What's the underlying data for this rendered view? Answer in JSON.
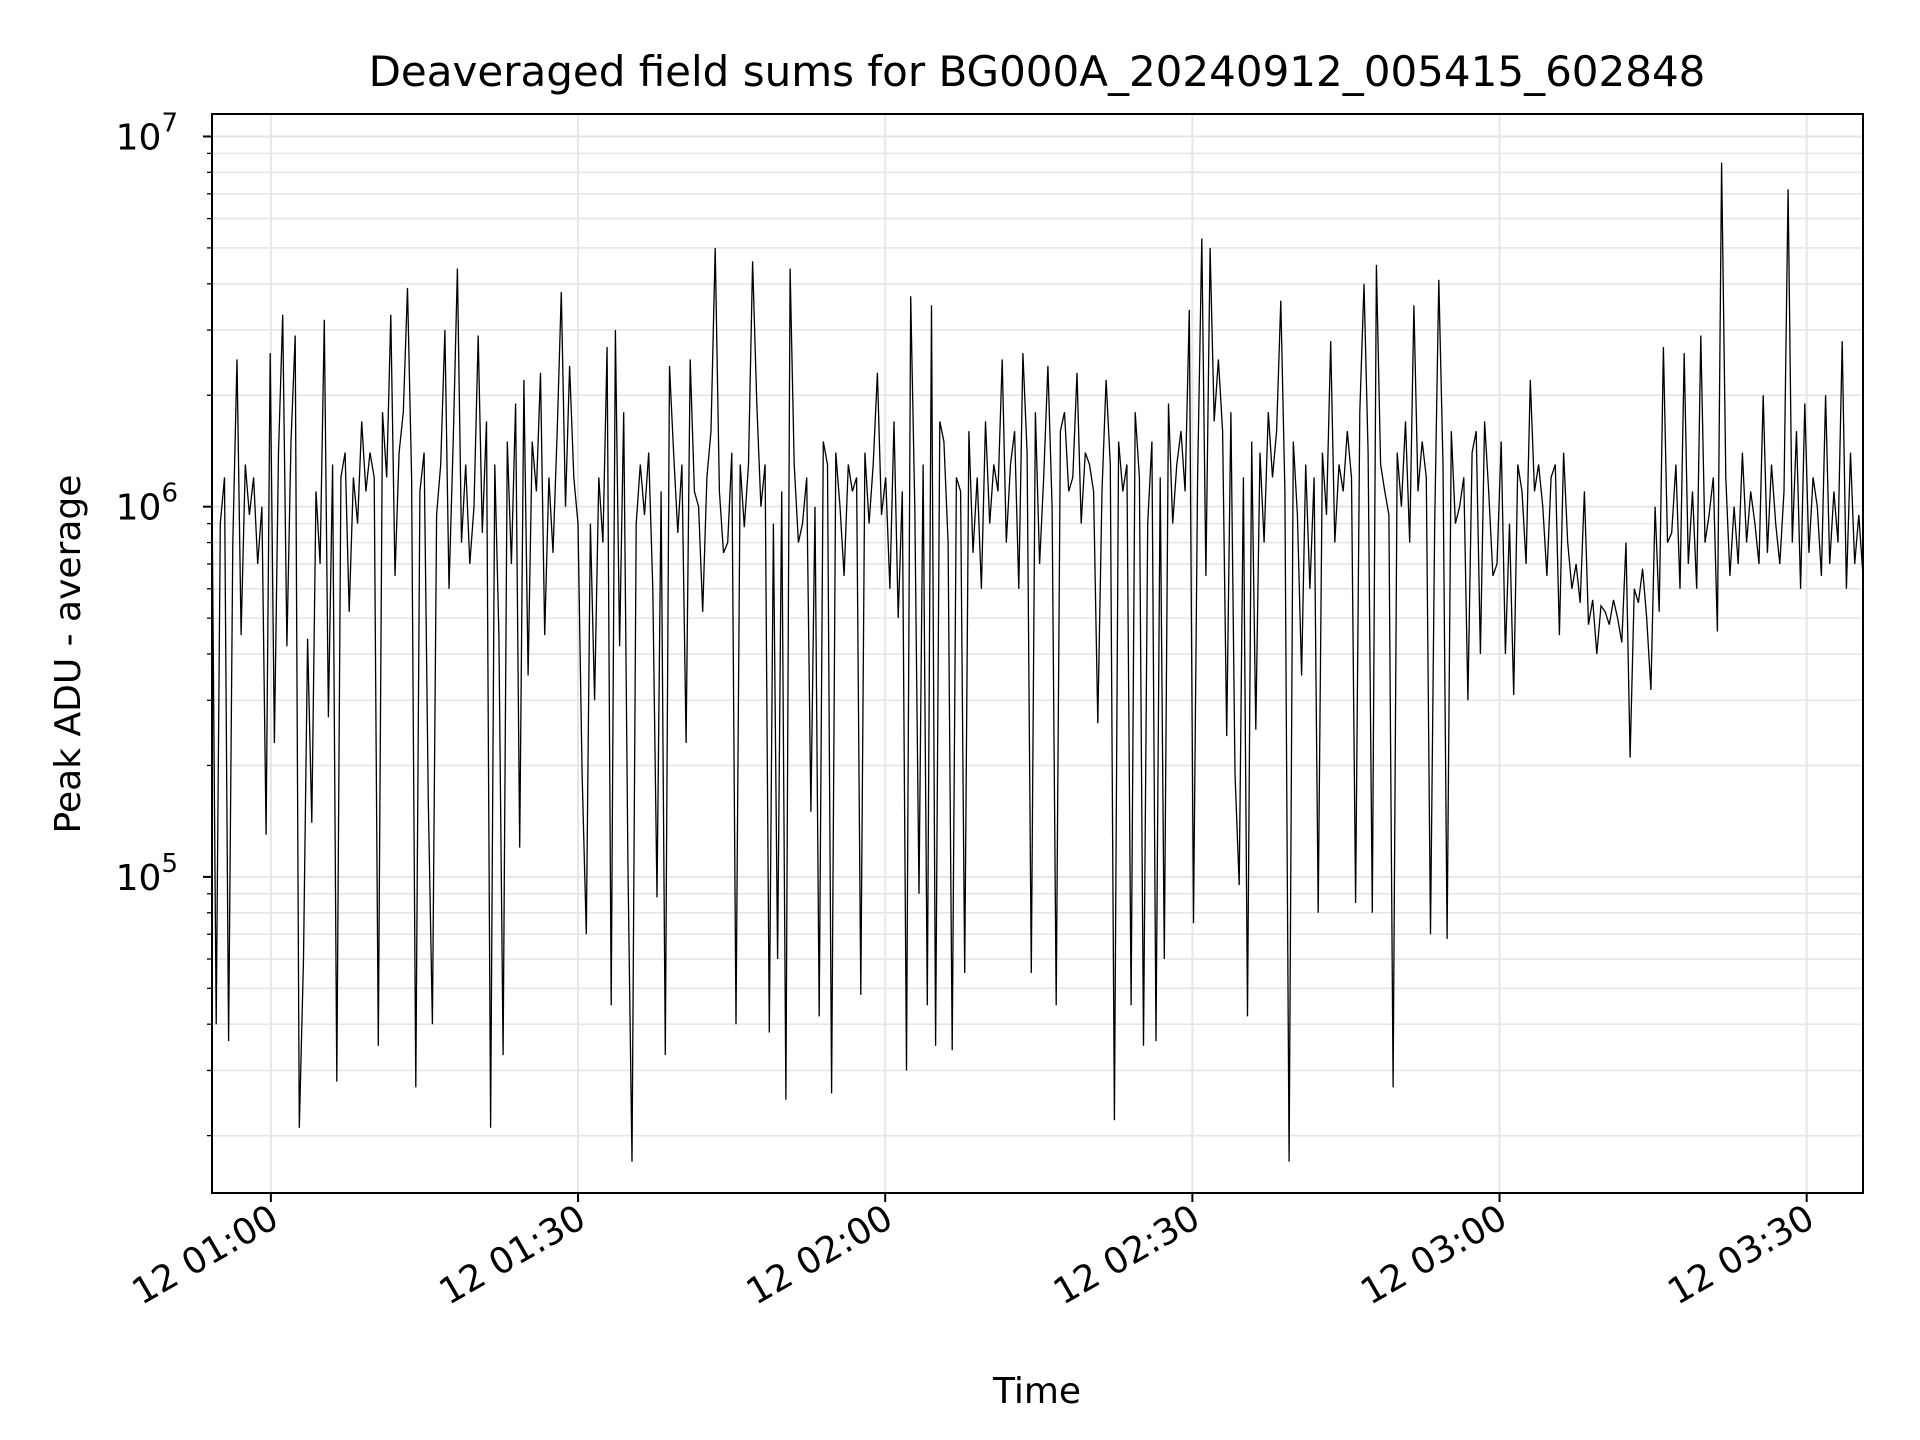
{
  "chart_data": {
    "type": "line",
    "title": "Deaveraged field sums for BG000A_20240912_005415_602848",
    "xlabel": "Time",
    "ylabel": "Peak ADU - average",
    "x_tick_labels": [
      "12 01:00",
      "12 01:30",
      "12 02:00",
      "12 02:30",
      "12 03:00",
      "12 03:30"
    ],
    "y_tick_labels": [
      {
        "base": "10",
        "exp": "5"
      },
      {
        "base": "10",
        "exp": "6"
      },
      {
        "base": "10",
        "exp": "7"
      }
    ],
    "x_range": [
      "2024-09-12T00:54:15",
      "2024-09-12T03:35:30"
    ],
    "y_scale": "log",
    "ylim": [
      14000,
      11500000
    ],
    "grid": "major and minor, light gray",
    "line_color": "#000000",
    "series": [
      {
        "x_start": "2024-09-12T00:54:15",
        "x_end": "2024-09-12T03:35:30",
        "values": [
          1100000,
          40000,
          900000,
          1200000,
          36000,
          800000,
          2500000,
          450000,
          1300000,
          950000,
          1200000,
          700000,
          1000000,
          130000,
          2600000,
          230000,
          1400000,
          3300000,
          420000,
          1500000,
          2900000,
          21000,
          60000,
          440000,
          140000,
          1100000,
          700000,
          3200000,
          270000,
          1300000,
          28000,
          1200000,
          1400000,
          520000,
          1200000,
          900000,
          1700000,
          1100000,
          1400000,
          1200000,
          35000,
          1800000,
          1200000,
          3300000,
          650000,
          1400000,
          1800000,
          3900000,
          1200000,
          27000,
          1100000,
          1400000,
          160000,
          40000,
          950000,
          1300000,
          3000000,
          600000,
          1500000,
          4400000,
          800000,
          1300000,
          700000,
          1000000,
          2900000,
          850000,
          1700000,
          21000,
          1300000,
          450000,
          33000,
          1500000,
          700000,
          1900000,
          120000,
          2200000,
          350000,
          1500000,
          1100000,
          2300000,
          450000,
          1200000,
          750000,
          1600000,
          3800000,
          1000000,
          2400000,
          1200000,
          900000,
          190000,
          70000,
          900000,
          300000,
          1200000,
          800000,
          2700000,
          45000,
          3000000,
          420000,
          1800000,
          110000,
          17000,
          900000,
          1300000,
          950000,
          1400000,
          600000,
          88000,
          1100000,
          33000,
          2400000,
          1400000,
          850000,
          1300000,
          230000,
          2500000,
          1100000,
          1000000,
          520000,
          1200000,
          1600000,
          5000000,
          1100000,
          750000,
          800000,
          1400000,
          40000,
          1300000,
          880000,
          1300000,
          4600000,
          1900000,
          1000000,
          1300000,
          38000,
          900000,
          60000,
          1100000,
          25000,
          4400000,
          1300000,
          800000,
          900000,
          1200000,
          150000,
          1000000,
          42000,
          1500000,
          1300000,
          26000,
          1400000,
          1000000,
          650000,
          1300000,
          1100000,
          1200000,
          48000,
          1400000,
          900000,
          1300000,
          2300000,
          950000,
          1200000,
          600000,
          1700000,
          500000,
          1100000,
          30000,
          3700000,
          1000000,
          90000,
          1300000,
          45000,
          3500000,
          35000,
          1700000,
          1500000,
          800000,
          34000,
          1200000,
          1100000,
          55000,
          1600000,
          750000,
          1200000,
          600000,
          1700000,
          900000,
          1300000,
          1100000,
          2500000,
          800000,
          1300000,
          1600000,
          600000,
          2600000,
          1400000,
          55000,
          1800000,
          700000,
          1200000,
          2400000,
          1000000,
          45000,
          1600000,
          1800000,
          1100000,
          1200000,
          2300000,
          900000,
          1400000,
          1300000,
          1100000,
          260000,
          1100000,
          2200000,
          1300000,
          22000,
          1500000,
          1100000,
          1300000,
          45000,
          1800000,
          1200000,
          35000,
          900000,
          1500000,
          36000,
          1200000,
          60000,
          1900000,
          900000,
          1300000,
          1600000,
          1100000,
          3400000,
          75000,
          1200000,
          5300000,
          650000,
          5000000,
          1700000,
          2500000,
          1600000,
          240000,
          1800000,
          190000,
          95000,
          1200000,
          42000,
          1500000,
          250000,
          1400000,
          800000,
          1800000,
          1200000,
          1600000,
          3600000,
          1100000,
          17000,
          1500000,
          950000,
          350000,
          1300000,
          600000,
          1200000,
          80000,
          1400000,
          950000,
          2800000,
          800000,
          1300000,
          1100000,
          1600000,
          1200000,
          85000,
          1800000,
          4000000,
          1400000,
          80000,
          4500000,
          1300000,
          1100000,
          950000,
          27000,
          1400000,
          1000000,
          1700000,
          800000,
          3500000,
          1100000,
          1500000,
          1200000,
          70000,
          900000,
          4100000,
          1300000,
          68000,
          1600000,
          900000,
          1000000,
          1200000,
          300000,
          1400000,
          1600000,
          400000,
          1700000,
          1100000,
          650000,
          700000,
          1500000,
          400000,
          900000,
          310000,
          1300000,
          1100000,
          700000,
          2200000,
          1100000,
          1300000,
          1000000,
          650000,
          1200000,
          1300000,
          450000,
          1400000,
          800000,
          600000,
          700000,
          550000,
          1100000,
          480000,
          560000,
          400000,
          540000,
          520000,
          480000,
          560000,
          500000,
          430000,
          800000,
          210000,
          600000,
          550000,
          680000,
          500000,
          320000,
          1000000,
          520000,
          2700000,
          800000,
          850000,
          1300000,
          600000,
          2600000,
          700000,
          1100000,
          600000,
          2900000,
          800000,
          950000,
          1200000,
          460000,
          8500000,
          1200000,
          650000,
          1000000,
          700000,
          1400000,
          800000,
          1100000,
          900000,
          700000,
          2000000,
          750000,
          1300000,
          900000,
          700000,
          1100000,
          7200000,
          800000,
          1600000,
          600000,
          1900000,
          750000,
          1200000,
          1000000,
          650000,
          2000000,
          700000,
          1100000,
          800000,
          2800000,
          600000,
          1400000,
          700000,
          950000,
          650000
        ]
      }
    ]
  }
}
